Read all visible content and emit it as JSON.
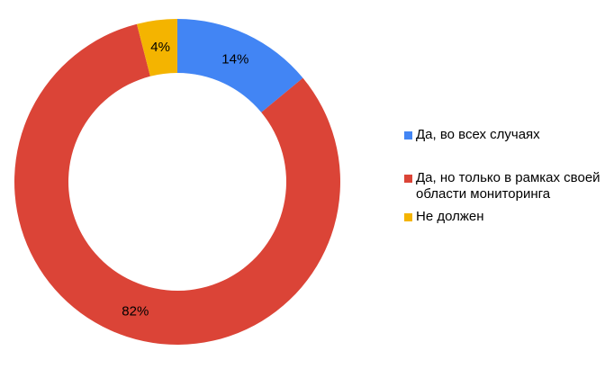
{
  "chart_data": {
    "type": "pie",
    "subtype": "donut",
    "title": "",
    "categories": [
      "Да, во всех случаях",
      "Да, но только в рамках своей области мониторинга",
      "Не должен"
    ],
    "values": [
      14,
      82,
      4
    ],
    "percent_labels": [
      "14%",
      "82%",
      "4%"
    ],
    "colors": [
      "#4285F4",
      "#DB4437",
      "#F4B400"
    ],
    "start_angle_deg": 0,
    "direction": "clockwise",
    "inner_radius_ratio": 0.67,
    "legend_position": "right",
    "slice_label_color": "#000000",
    "background_color": "#FFFFFF"
  },
  "legend": {
    "items": [
      {
        "label": "Да, во всех случаях",
        "color": "#4285F4"
      },
      {
        "label": "Да, но только в рамках своей области мониторинга",
        "color": "#DB4437"
      },
      {
        "label": "Не должен",
        "color": "#F4B400"
      }
    ]
  }
}
